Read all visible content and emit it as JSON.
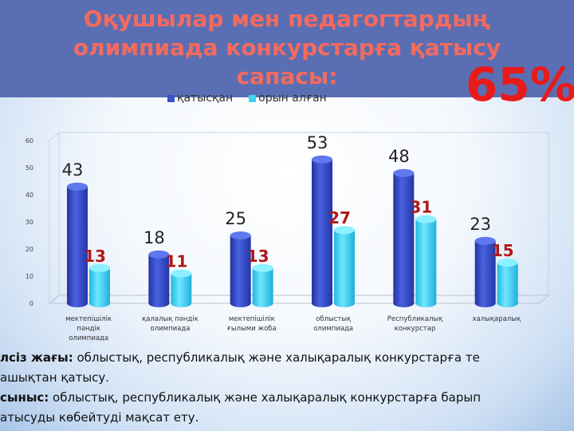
{
  "title": "Оқушылар мен педагогтардың олимпиада конкурстарға қатысу сапасы:",
  "title_lines": [
    "Оқушылар мен педагогтардың",
    "олимпиада конкурстарға қатысу",
    "сапасы:"
  ],
  "percent": "65%",
  "colors": {
    "series1": "#3a4fc8",
    "series2": "#3fd3f0",
    "label2": "#b01818",
    "header": "#5a6fb3"
  },
  "chart_data": {
    "type": "bar",
    "categories": [
      [
        "мектепішілік",
        "пәндік",
        "олимпиада"
      ],
      [
        "қалалық пәндік",
        "олимпиада"
      ],
      [
        "мектепішілік",
        "ғылыми жоба"
      ],
      [
        "облыстық",
        "олимпиада"
      ],
      [
        "Республикалық",
        "конкурстар"
      ],
      [
        "халықаралық"
      ]
    ],
    "series": [
      {
        "name": "қатысқан",
        "values": [
          43,
          18,
          25,
          53,
          48,
          23
        ]
      },
      {
        "name": "орын алған",
        "values": [
          13,
          11,
          13,
          27,
          31,
          15
        ]
      }
    ],
    "yticks": [
      "0",
      "10",
      "20",
      "30",
      "40",
      "50",
      "60"
    ],
    "ylim": [
      0,
      60
    ],
    "legend": "top",
    "grid": false
  },
  "footer": {
    "line1_label": "лсіз жағы:",
    "line1_text": " облыстық, республикалық және халықаралық конкурстарға те",
    "line2_text": "ашықтан қатысу.",
    "line3_label": "сыныс:",
    "line3_text": " облыстық, республикалық және халықаралық конкурстарға барып",
    "line4_text": "атысуды көбейтуді мақсат ету."
  }
}
